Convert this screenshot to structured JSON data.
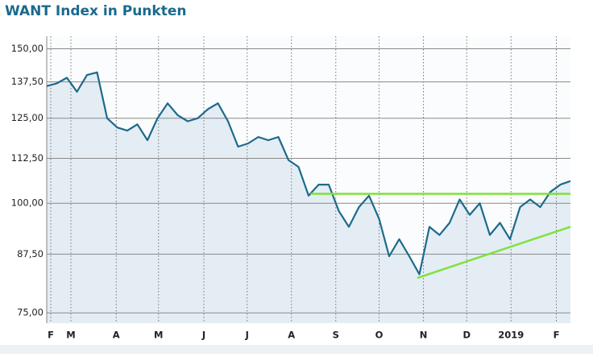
{
  "chart_data": {
    "type": "line",
    "title": "WANT Index in Punkten",
    "log_scale": true,
    "grid": true,
    "ylim": [
      73,
      155
    ],
    "yticks": [
      {
        "value": 75,
        "label": "75,00"
      },
      {
        "value": 87.5,
        "label": "87,50"
      },
      {
        "value": 100,
        "label": "100,00"
      },
      {
        "value": 112.5,
        "label": "112,50"
      },
      {
        "value": 125,
        "label": "125,00"
      },
      {
        "value": 137.5,
        "label": "137,50"
      },
      {
        "value": 150,
        "label": "150,00"
      }
    ],
    "xlim": [
      0,
      52
    ],
    "xticks": [
      {
        "value": 0.4,
        "label": "F"
      },
      {
        "value": 2.4,
        "label": "M"
      },
      {
        "value": 6.9,
        "label": "A"
      },
      {
        "value": 11.1,
        "label": "M"
      },
      {
        "value": 15.6,
        "label": "J"
      },
      {
        "value": 19.9,
        "label": "J"
      },
      {
        "value": 24.3,
        "label": "A"
      },
      {
        "value": 28.7,
        "label": "S"
      },
      {
        "value": 33.0,
        "label": "O"
      },
      {
        "value": 37.4,
        "label": "N"
      },
      {
        "value": 41.7,
        "label": "D"
      },
      {
        "value": 46.1,
        "label": "2019"
      },
      {
        "value": 50.6,
        "label": "F"
      }
    ],
    "series": [
      {
        "color": "#1d6a8c",
        "fill": "#e4edf4",
        "values": [
          136,
          137,
          139,
          134,
          140,
          141,
          125,
          122,
          121,
          123,
          118,
          125,
          130,
          126,
          124,
          125,
          128,
          130,
          124,
          116,
          117,
          119,
          118,
          119,
          112,
          110,
          102,
          105,
          105,
          98,
          94,
          99,
          102,
          96,
          87,
          91,
          87,
          83,
          94,
          92,
          95,
          101,
          97,
          100,
          92,
          95,
          91,
          99,
          101,
          99,
          103,
          105,
          106
        ]
      }
    ],
    "lines": [
      {
        "color": "#7ee23a",
        "x": [
          26.2,
          52
        ],
        "y": [
          102.5,
          102.5
        ]
      },
      {
        "color": "#7ee23a",
        "x": [
          36.8,
          52
        ],
        "y": [
          82.2,
          94
        ]
      }
    ]
  }
}
